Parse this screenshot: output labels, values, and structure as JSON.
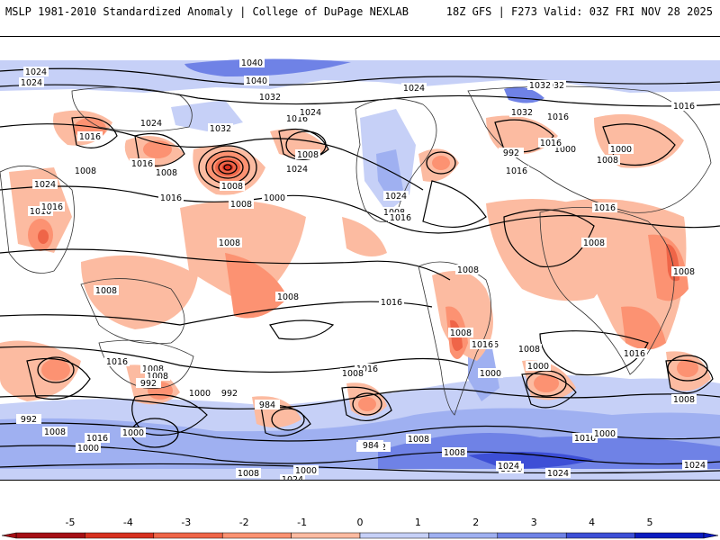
{
  "header": {
    "title_left": "MSLP 1981-2010 Standardized Anomaly | College of DuPage NEXLAB",
    "title_right": "18Z GFS | F273 Valid: 03Z FRI NOV 28 2025"
  },
  "colors": {
    "neg5": "#a50f15",
    "neg4": "#d7301f",
    "neg3": "#ef6548",
    "neg2": "#fc9272",
    "neg1": "#fcbba1",
    "zero": "#ffffff",
    "pos1": "#c6d0f7",
    "pos2": "#9fb0f1",
    "pos3": "#6f82e6",
    "pos4": "#3d4fd6",
    "pos5": "#0b1bc0"
  },
  "colorbar": {
    "ticks": [
      "-5",
      "-4",
      "-3",
      "-2",
      "-1",
      "0",
      "1",
      "2",
      "3",
      "4",
      "5"
    ]
  },
  "isobar_labels": [
    "1040",
    "1040",
    "1032",
    "1032",
    "1024",
    "1024",
    "1024",
    "1032",
    "1016",
    "1024",
    "1032",
    "1024",
    "1016",
    "1032",
    "1016",
    "1016",
    "1016",
    "1008",
    "1008",
    "1024",
    "1024",
    "1016",
    "1016",
    "1000",
    "1008",
    "1008",
    "1008",
    "1024",
    "1008",
    "1016",
    "992",
    "1000",
    "1016",
    "1000",
    "1008",
    "1016",
    "1016",
    "1008",
    "1008",
    "1008",
    "1008",
    "1008",
    "1008",
    "1016",
    "1008",
    "1016",
    "1016",
    "1008",
    "1016",
    "1016",
    "1008",
    "1008",
    "1016",
    "1008",
    "1000",
    "1000",
    "992",
    "992",
    "992",
    "1000",
    "984",
    "1008",
    "1000",
    "1000",
    "1008",
    "1016",
    "1000",
    "992",
    "984",
    "1008",
    "1016",
    "1024",
    "1024",
    "1016",
    "1008",
    "1000",
    "1024",
    "1024",
    "1016",
    "1000",
    "1024",
    "1008"
  ]
}
